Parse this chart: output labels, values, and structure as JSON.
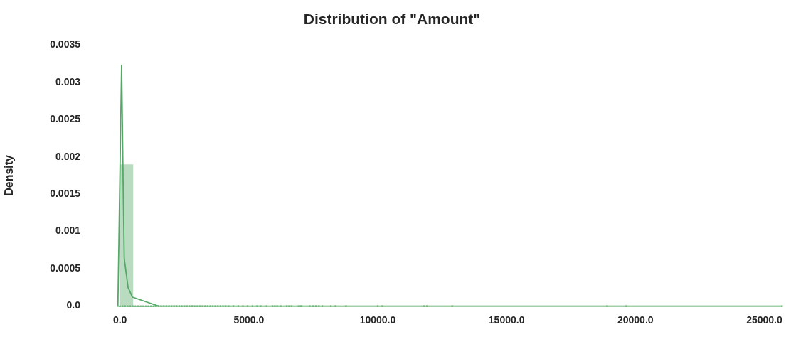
{
  "chart_data": {
    "type": "histogram",
    "title": "Distribution of \"Amount\"",
    "ylabel": "Density",
    "bins": [
      0,
      514
    ],
    "values": [
      0.0019
    ],
    "color": "#b9dcc0",
    "series": [
      {
        "type": "line",
        "color": "#55a868",
        "x": [
          -80,
          64,
          94,
          127,
          166,
          315,
          486,
          1500,
          25690
        ],
        "values": [
          0,
          0.00323,
          0.00246,
          0.00155,
          0.00064,
          0.00025,
          0.00012,
          0,
          0
        ]
      },
      {
        "type": "scatter",
        "color": "#55a868",
        "x": [
          0,
          100,
          200,
          300,
          400,
          500,
          600,
          700,
          800,
          900,
          1000,
          1100,
          1200,
          1300,
          1400,
          1500,
          1600,
          1700,
          1800,
          1900,
          2000,
          2100,
          2200,
          2300,
          2400,
          2500,
          2600,
          2700,
          2800,
          2900,
          3000,
          3100,
          3200,
          3300,
          3400,
          3500,
          3600,
          3700,
          3800,
          3900,
          4000,
          4100,
          4220,
          4400,
          4590,
          4770,
          4950,
          5140,
          5320,
          5460,
          5690,
          5920,
          6010,
          6100,
          6240,
          6470,
          6560,
          6660,
          6930,
          7000,
          7050,
          7370,
          7490,
          7600,
          7720,
          7850,
          8180,
          8360,
          8770,
          10000,
          10180,
          11790,
          11910,
          12890,
          18900,
          19640,
          25690
        ],
        "values": [
          0,
          0,
          0,
          0,
          0,
          0,
          0,
          0,
          0,
          0,
          0,
          0,
          0,
          0,
          0,
          0,
          0,
          0,
          0,
          0,
          0,
          0,
          0,
          0,
          0,
          0,
          0,
          0,
          0,
          0,
          0,
          0,
          0,
          0,
          0,
          0,
          0,
          0,
          0,
          0,
          0,
          0,
          0,
          0,
          0,
          0,
          0,
          0,
          0,
          0,
          0,
          0,
          0,
          0,
          0,
          0,
          0,
          0,
          0,
          0,
          0,
          0,
          0,
          0,
          0,
          0,
          0,
          0,
          0,
          0,
          0,
          0,
          0,
          0,
          0,
          0,
          0
        ]
      }
    ],
    "xlim": [
      -100,
      25700
    ],
    "ylim": [
      0,
      0.0035
    ],
    "xticks": [
      {
        "value": 0,
        "label": "0.0"
      },
      {
        "value": 5000,
        "label": "5000.0"
      },
      {
        "value": 10000,
        "label": "10000.0"
      },
      {
        "value": 15000,
        "label": "15000.0"
      },
      {
        "value": 20000,
        "label": "20000.0"
      },
      {
        "value": 25000,
        "label": "25000.0"
      }
    ],
    "yticks": [
      {
        "value": 0,
        "label": "0.0"
      },
      0.0005,
      0.001,
      0.0015,
      0.002,
      0.0025,
      0.003,
      0.0035
    ],
    "grid": false,
    "legend": false
  }
}
